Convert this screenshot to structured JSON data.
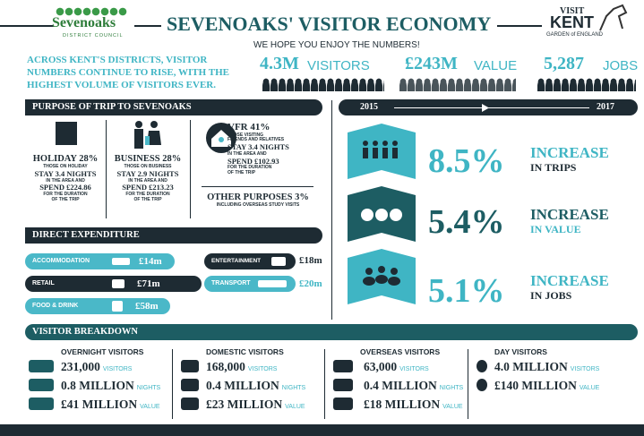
{
  "header": {
    "logo": "Sevenoaks",
    "logo_sub": "DISTRICT COUNCIL",
    "title": "SEVENOAKS' VISITOR ECONOMY",
    "subtitle": "WE HOPE YOU ENJOY THE NUMBERS!",
    "partner": [
      "VISIT",
      "KENT",
      "GARDEN of ENGLAND"
    ]
  },
  "intro": "ACROSS KENT'S DISTRICTS, VISITOR NUMBERS CONTINUE TO RISE, WITH THE HIGHEST VOLUME OF VISITORS EVER.",
  "stats": [
    {
      "value": "4.3M",
      "label": "VISITORS"
    },
    {
      "value": "£243M",
      "label": "VALUE"
    },
    {
      "value": "5,287",
      "label": "JOBS"
    }
  ],
  "purpose": {
    "title": "PURPOSE OF TRIP TO SEVENOAKS",
    "holiday": [
      "HOLIDAY 28%",
      "THOSE ON HOLIDAY",
      "STAY 3.4 NIGHTS",
      "IN THE AREA AND",
      "SPEND £224.86",
      "FOR THE DURATION",
      "OF THE TRIP"
    ],
    "business": [
      "BUSINESS 28%",
      "THOSE ON BUSINESS",
      "STAY 2.9 NIGHTS",
      "IN THE AREA AND",
      "SPEND £213.23",
      "FOR THE DURATION",
      "OF THE TRIP"
    ],
    "vfr": [
      "VFR 41%",
      "THOSE VISITING",
      "FRIENDS AND RELATIVES",
      "STAY 3.4 NIGHTS",
      "IN THE AREA AND",
      "SPEND £102.93",
      "FOR THE DURATION",
      "OF THE TRIP"
    ],
    "other": [
      "OTHER PURPOSES 3%",
      "INCLUDING OVERSEAS STUDY VISITS"
    ]
  },
  "expenditure": {
    "title": "DIRECT EXPENDITURE",
    "items": [
      {
        "label": "ACCOMMODATION",
        "value": "£14m"
      },
      {
        "label": "ENTERTAINMENT",
        "value": "£18m"
      },
      {
        "label": "RETAIL",
        "value": "£71m"
      },
      {
        "label": "TRANSPORT",
        "value": "£20m"
      },
      {
        "label": "FOOD & DRINK",
        "value": "£58m"
      }
    ]
  },
  "trend": {
    "from": "2015",
    "to": "2017",
    "items": [
      {
        "value": "8.5%",
        "label": "INCREASE",
        "sub": "IN TRIPS"
      },
      {
        "value": "5.4%",
        "label": "INCREASE",
        "sub": "IN VALUE"
      },
      {
        "value": "5.1%",
        "label": "INCREASE",
        "sub": "IN JOBS"
      }
    ]
  },
  "breakdown": {
    "title": "VISITOR BREAKDOWN",
    "groups": [
      {
        "title": "OVERNIGHT VISITORS",
        "rows": [
          [
            "231,000",
            "VISITORS"
          ],
          [
            "0.8 MILLION",
            "NIGHTS"
          ],
          [
            "£41 MILLION",
            "VALUE"
          ]
        ]
      },
      {
        "title": "DOMESTIC VISITORS",
        "rows": [
          [
            "168,000",
            "VISITORS"
          ],
          [
            "0.4 MILLION",
            "NIGHTS"
          ],
          [
            "£23 MILLION",
            "VALUE"
          ]
        ]
      },
      {
        "title": "OVERSEAS VISITORS",
        "rows": [
          [
            "63,000",
            "VISITORS"
          ],
          [
            "0.4 MILLION",
            "NIGHTS"
          ],
          [
            "£18 MILLION",
            "VALUE"
          ]
        ]
      },
      {
        "title": "DAY VISITORS",
        "rows": [
          [
            "4.0 MILLION",
            "VISITORS"
          ],
          [
            "£140 MILLION",
            "VALUE"
          ]
        ]
      }
    ]
  }
}
